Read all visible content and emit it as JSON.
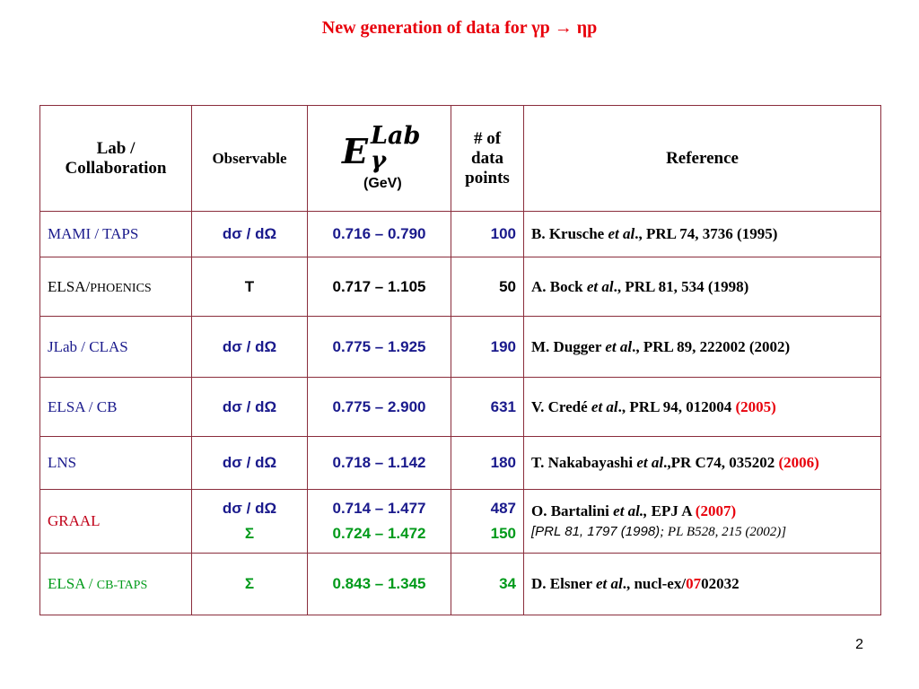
{
  "title": "New generation of data for γp → ηp",
  "headers": {
    "lab": "Lab / Collaboration",
    "observable": "Observable",
    "energy_E": "E",
    "energy_sup": "Lab",
    "energy_sub": "γ",
    "energy_unit": "(GeV)",
    "points": "# of data points",
    "reference": "Reference"
  },
  "rows": [
    {
      "lab_main": "MAMI / TAPS",
      "lab_small": "",
      "observable": "dσ / dΩ",
      "energy": "0.716 – 0.790",
      "points": "100",
      "ref_author": "B. Krusche ",
      "ref_etal": "et al",
      "ref_rest": ".,  PRL 74, 3736 (1995)",
      "ref_year": ""
    },
    {
      "lab_main": "ELSA/",
      "lab_small": "PHOENICS",
      "observable": "T",
      "energy": "0.717 – 1.105",
      "points": "50",
      "ref_author": "A. Bock ",
      "ref_etal": "et al",
      "ref_rest": "., PRL 81, 534 (1998)",
      "ref_year": ""
    },
    {
      "lab_main": "JLab / CLAS",
      "lab_small": "",
      "observable": "dσ / dΩ",
      "energy": "0.775 – 1.925",
      "points": "190",
      "ref_author": "M. Dugger ",
      "ref_etal": "et al",
      "ref_rest": ".,  PRL 89, 222002 (2002)",
      "ref_year": ""
    },
    {
      "lab_main": "ELSA / CB",
      "lab_small": "",
      "observable": "dσ / dΩ",
      "energy": "0.775 – 2.900",
      "points": "631",
      "ref_author": "V. Credé ",
      "ref_etal": "et al",
      "ref_rest": "., PRL 94, 012004 ",
      "ref_year": "(2005)"
    },
    {
      "lab_main": "LNS",
      "lab_small": "",
      "observable": "dσ / dΩ",
      "energy": "0.718 – 1.142",
      "points": "180",
      "ref_author": "T. Nakabayashi ",
      "ref_etal": "et al",
      "ref_rest": ".,PR C74, 035202 ",
      "ref_year": "(2006)"
    },
    {
      "lab_main": "GRAAL",
      "lab_small": "",
      "observable": "dσ / dΩ",
      "observable2": "Σ",
      "energy": "0.714 – 1.477",
      "energy2": "0.724 – 1.472",
      "points": "487",
      "points2": "150",
      "ref_author": "O. Bartalini ",
      "ref_etal": "et al.,",
      "ref_rest": " EPJ A ",
      "ref_year": "(2007)",
      "ref_second_a": "[PRL 81, 1797 (1998)",
      "ref_second_b": "; PL B528, 215 (2002)]"
    },
    {
      "lab_main": "ELSA / ",
      "lab_small": "CB-TAPS",
      "observable": "Σ",
      "energy": "0.843 – 1.345",
      "points": "34",
      "ref_author": "D. Elsner ",
      "ref_etal": "et al",
      "ref_rest": "., nucl-ex/",
      "ref_year": "07",
      "ref_tail": "02032"
    }
  ],
  "page_number": "2",
  "colors": {
    "title": "#e8000b",
    "border": "#8a2d3c",
    "blue": "#1a1a8c",
    "green": "#009a1a",
    "red": "#e8000b",
    "darkred": "#c00018"
  }
}
